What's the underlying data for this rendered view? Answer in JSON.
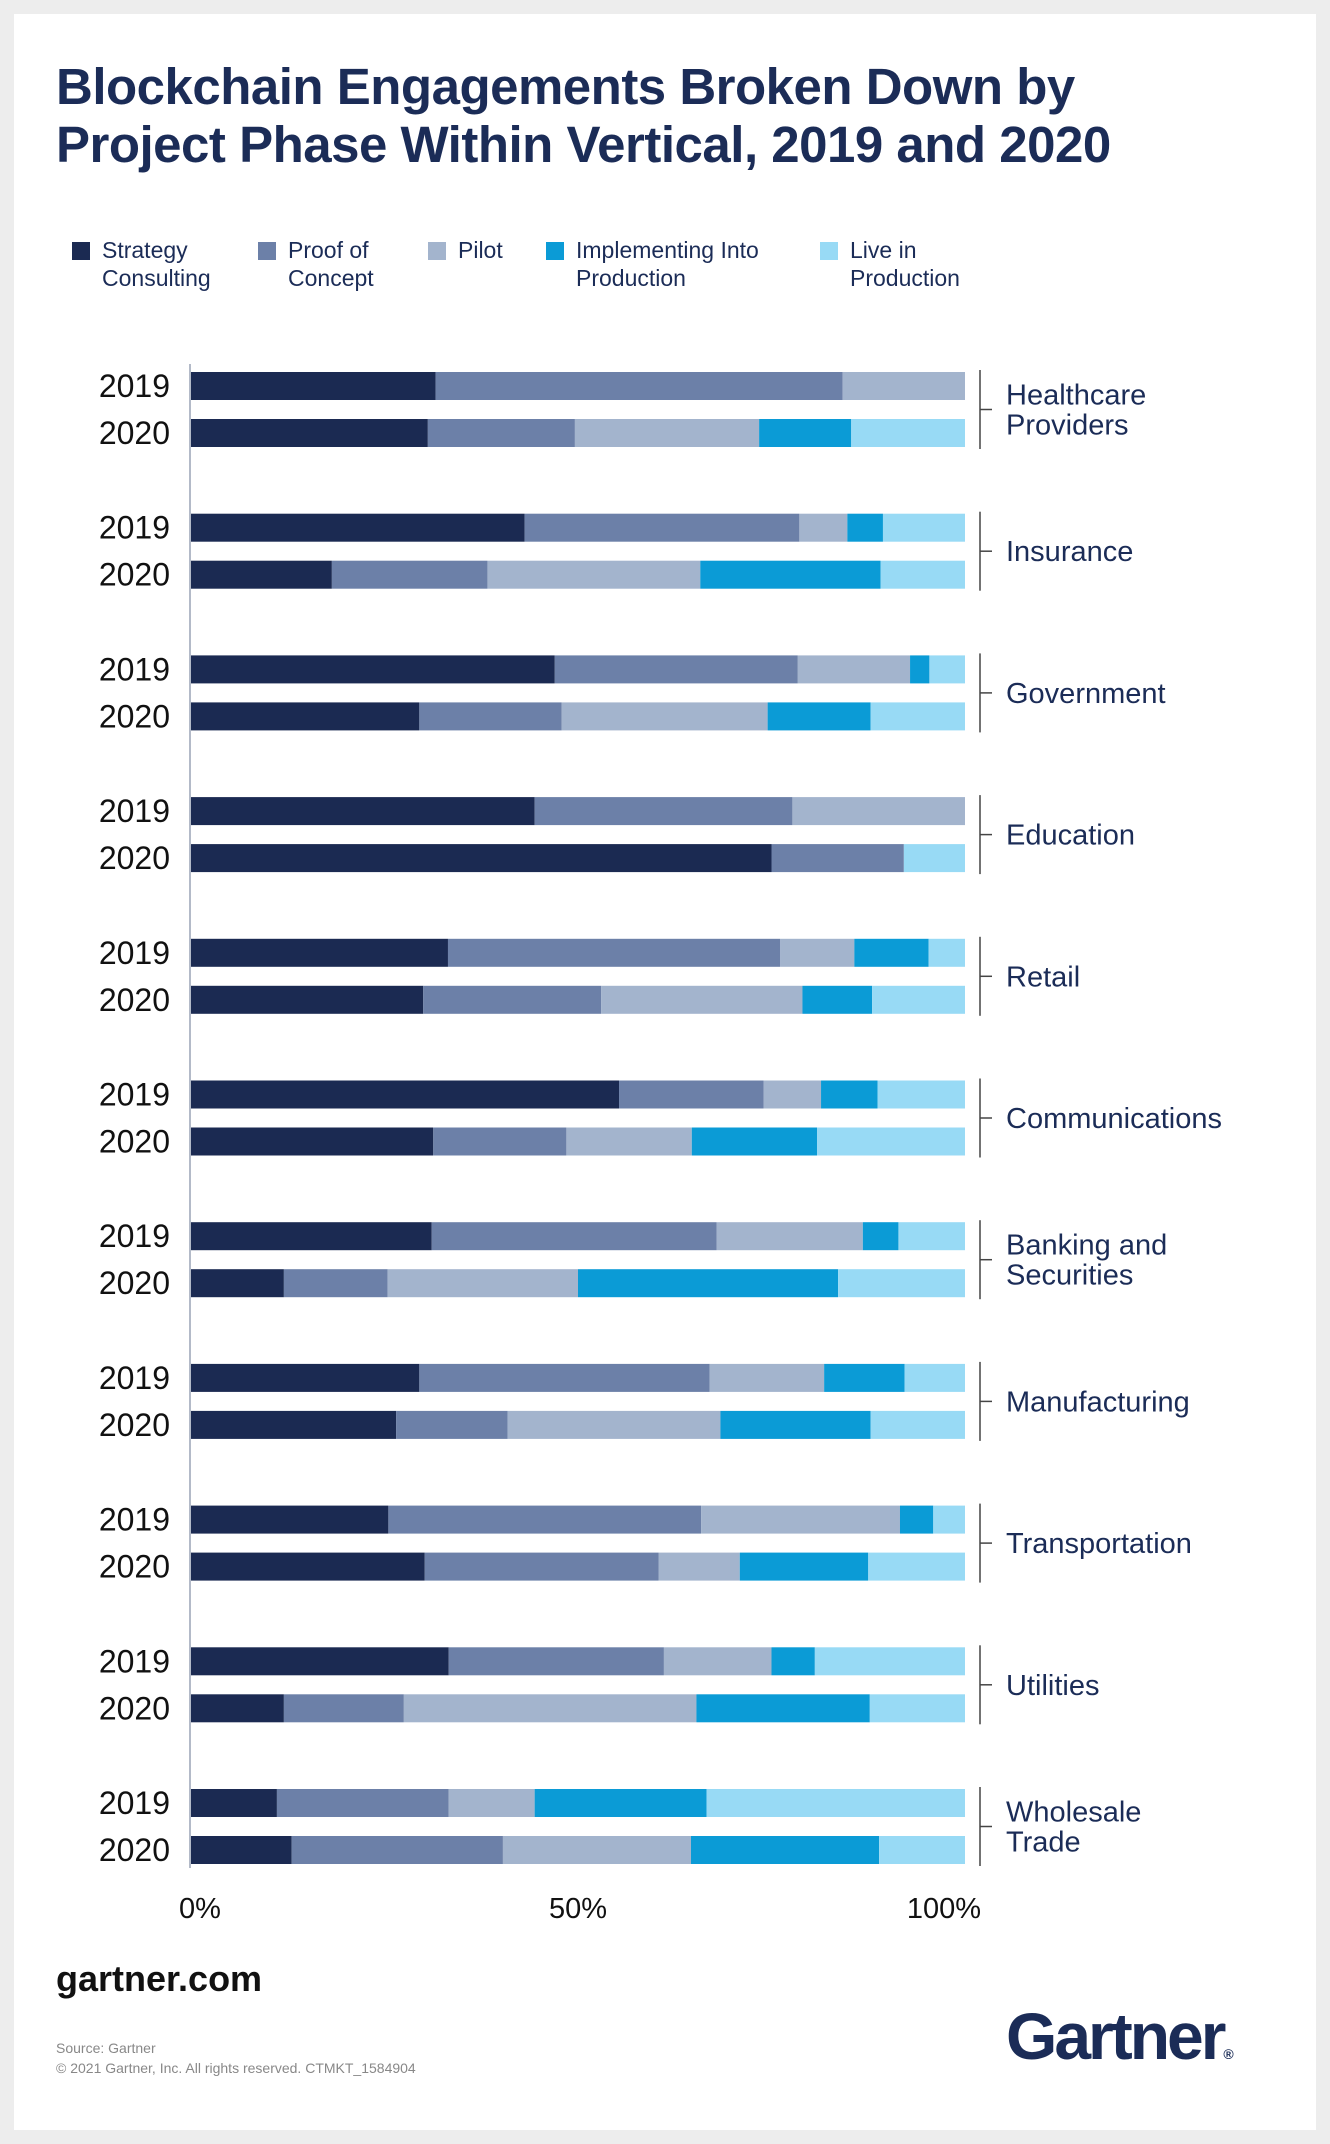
{
  "chart_data": {
    "type": "bar",
    "orientation": "horizontal",
    "stacked": true,
    "title": "Blockchain Engagements Broken Down by Project Phase Within Vertical, 2019 and 2020",
    "legend_position": "top",
    "xlim": [
      0,
      100
    ],
    "xticks": [
      "0%",
      "50%",
      "100%"
    ],
    "series_names": [
      "Strategy Consulting",
      "Proof of Concept",
      "Pilot",
      "Implementing Into Production",
      "Live in Production"
    ],
    "colors": [
      "#1b2a52",
      "#6c80a8",
      "#a3b4cd",
      "#0b9bd6",
      "#98daf5"
    ],
    "year_labels": [
      "2019",
      "2020"
    ],
    "groups": [
      {
        "name": "Healthcare Providers",
        "lines": [
          "Healthcare",
          "Providers"
        ],
        "bars": [
          {
            "year": "2019",
            "values": [
              31.6,
              52.6,
              15.8,
              0,
              0
            ]
          },
          {
            "year": "2020",
            "values": [
              30.6,
              19.0,
              23.8,
              11.9,
              14.7
            ]
          }
        ]
      },
      {
        "name": "Insurance",
        "lines": [
          "Insurance"
        ],
        "bars": [
          {
            "year": "2019",
            "values": [
              43.1,
              35.5,
              6.2,
              4.6,
              10.6
            ]
          },
          {
            "year": "2020",
            "values": [
              18.2,
              20.1,
              27.5,
              23.3,
              10.9
            ]
          }
        ]
      },
      {
        "name": "Government",
        "lines": [
          "Government"
        ],
        "bars": [
          {
            "year": "2019",
            "values": [
              47.0,
              31.4,
              14.5,
              2.5,
              4.6
            ]
          },
          {
            "year": "2020",
            "values": [
              29.5,
              18.4,
              26.6,
              13.3,
              12.2
            ]
          }
        ]
      },
      {
        "name": "Education",
        "lines": [
          "Education"
        ],
        "bars": [
          {
            "year": "2019",
            "values": [
              44.4,
              33.3,
              22.3,
              0,
              0
            ]
          },
          {
            "year": "2020",
            "values": [
              75.0,
              17.1,
              0,
              0,
              7.9
            ]
          }
        ]
      },
      {
        "name": "Retail",
        "lines": [
          "Retail"
        ],
        "bars": [
          {
            "year": "2019",
            "values": [
              33.2,
              42.9,
              9.6,
              9.6,
              4.7
            ]
          },
          {
            "year": "2020",
            "values": [
              30.0,
              23.0,
              26.0,
              9.0,
              12.0
            ]
          }
        ]
      },
      {
        "name": "Communications",
        "lines": [
          "Communications"
        ],
        "bars": [
          {
            "year": "2019",
            "values": [
              55.3,
              18.7,
              7.4,
              7.3,
              11.3
            ]
          },
          {
            "year": "2020",
            "values": [
              31.3,
              17.2,
              16.2,
              16.2,
              19.1
            ]
          }
        ]
      },
      {
        "name": "Banking and Securities",
        "lines": [
          "Banking and",
          "Securities"
        ],
        "bars": [
          {
            "year": "2019",
            "values": [
              31.1,
              36.8,
              18.9,
              4.6,
              8.6
            ]
          },
          {
            "year": "2020",
            "values": [
              12.0,
              13.4,
              24.6,
              33.6,
              16.4
            ]
          }
        ]
      },
      {
        "name": "Manufacturing",
        "lines": [
          "Manufacturing"
        ],
        "bars": [
          {
            "year": "2019",
            "values": [
              29.5,
              37.5,
              14.8,
              10.4,
              7.8
            ]
          },
          {
            "year": "2020",
            "values": [
              26.5,
              14.4,
              27.5,
              19.4,
              12.2
            ]
          }
        ]
      },
      {
        "name": "Transportation",
        "lines": [
          "Transportation"
        ],
        "bars": [
          {
            "year": "2019",
            "values": [
              25.5,
              40.4,
              25.7,
              4.3,
              4.1
            ]
          },
          {
            "year": "2020",
            "values": [
              30.2,
              30.2,
              10.5,
              16.6,
              12.5
            ]
          }
        ]
      },
      {
        "name": "Utilities",
        "lines": [
          "Utilities"
        ],
        "bars": [
          {
            "year": "2019",
            "values": [
              33.3,
              27.8,
              13.9,
              5.6,
              19.4
            ]
          },
          {
            "year": "2020",
            "values": [
              12.0,
              15.5,
              37.8,
              22.4,
              12.3
            ]
          }
        ]
      },
      {
        "name": "Wholesale Trade",
        "lines": [
          "Wholesale",
          "Trade"
        ],
        "bars": [
          {
            "year": "2019",
            "values": [
              11.1,
              22.2,
              11.1,
              22.2,
              33.4
            ]
          },
          {
            "year": "2020",
            "values": [
              13.0,
              27.3,
              24.3,
              24.3,
              11.1
            ]
          }
        ]
      }
    ]
  },
  "legend": [
    {
      "lines": [
        "Strategy",
        "Consulting"
      ],
      "color": "#1b2a52"
    },
    {
      "lines": [
        "Proof of",
        "Concept"
      ],
      "color": "#6c80a8"
    },
    {
      "lines": [
        "Pilot"
      ],
      "color": "#a3b4cd"
    },
    {
      "lines": [
        "Implementing Into",
        "Production"
      ],
      "color": "#0b9bd6"
    },
    {
      "lines": [
        "Live in",
        "Production"
      ],
      "color": "#98daf5"
    }
  ],
  "footer": {
    "url": "gartner.com",
    "source": "Source: Gartner",
    "copyright": "© 2021 Gartner, Inc. All rights reserved. CTMKT_1584904",
    "logo": "Gartner",
    "logo_mark": "®"
  }
}
